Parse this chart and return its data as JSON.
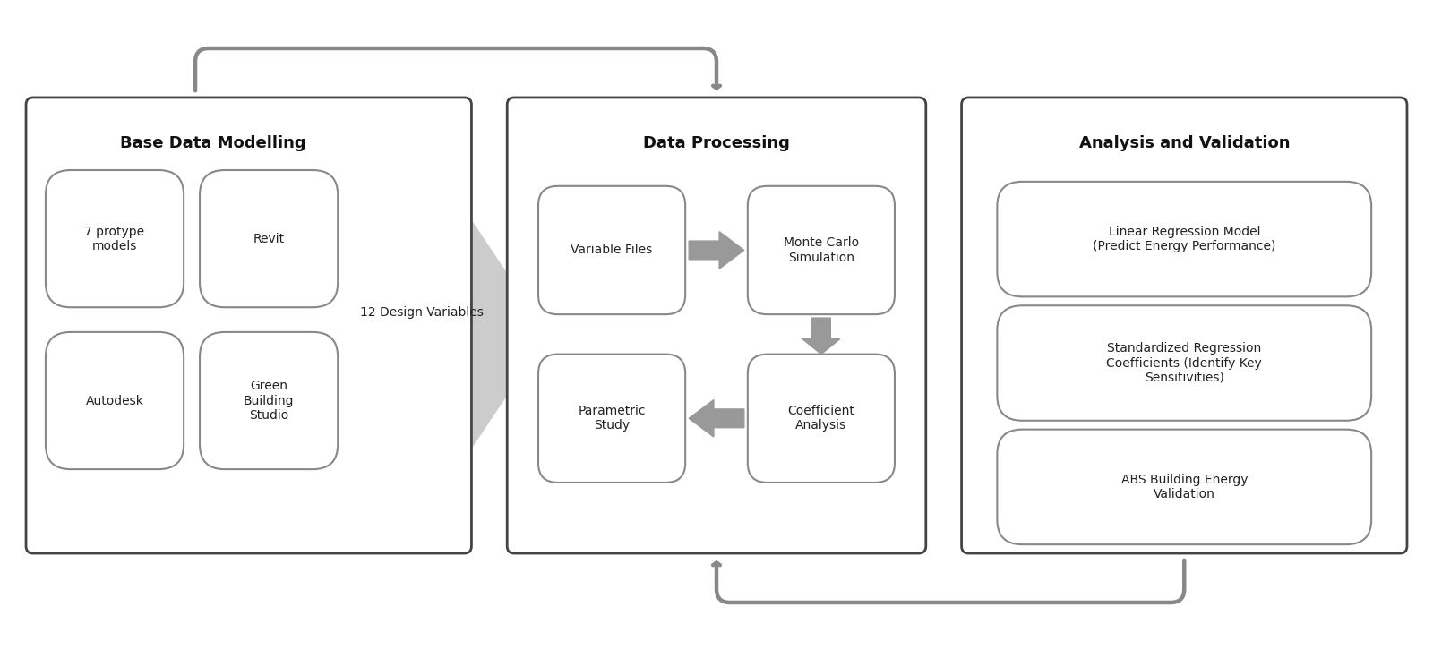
{
  "background_color": "#ffffff",
  "fig_width": 16.0,
  "fig_height": 7.26,
  "box1_title": "Base Data Modelling",
  "box1_sub": [
    [
      "7 protype\nmodels",
      "Revit"
    ],
    [
      "Autodesk",
      "Green\nBuilding\nStudio"
    ]
  ],
  "box1_label": "12 Design Variables",
  "box2_title": "Data Processing",
  "box2_items": [
    [
      "Variable Files",
      "Monte Carlo\nSimulation"
    ],
    [
      "Parametric\nStudy",
      "Coefficient\nAnalysis"
    ]
  ],
  "box3_title": "Analysis and Validation",
  "box3_items": [
    "Linear Regression Model\n(Predict Energy Performance)",
    "Standardized Regression\nCoefficients (Identify Key\nSensitivities)",
    "ABS Building Energy\nValidation"
  ],
  "arrow_color": "#888888",
  "box_edge_color": "#444444",
  "text_color": "#222222",
  "title_color": "#111111",
  "sub_edge_color": "#888888",
  "big_arrow_color": "#cccccc",
  "small_arrow_color": "#999999"
}
